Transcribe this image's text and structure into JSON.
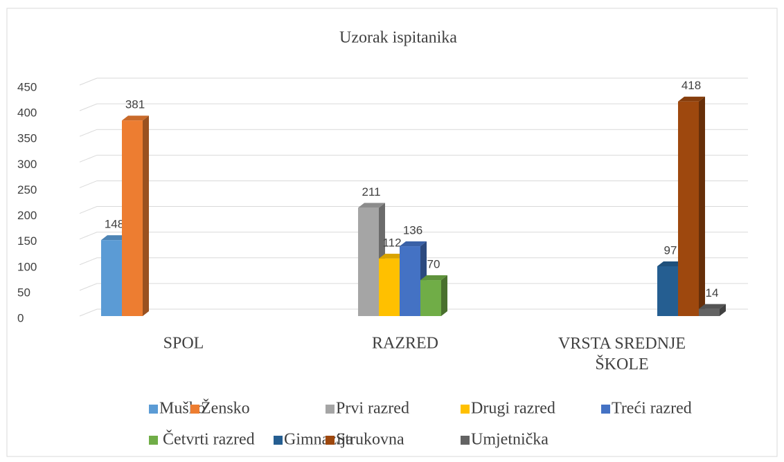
{
  "chart_data": {
    "type": "bar3d",
    "title": "Uzorak ispitanika",
    "categories": [
      "SPOL",
      "RAZRED",
      "VRSTA SREDNJE ŠKOLE"
    ],
    "series": [
      {
        "name": "Muško",
        "color": "#5b9bd5",
        "values": [
          148,
          null,
          null
        ]
      },
      {
        "name": "Žensko",
        "color": "#ed7d31",
        "values": [
          381,
          null,
          null
        ]
      },
      {
        "name": "Prvi razred",
        "color": "#a5a5a5",
        "values": [
          null,
          211,
          null
        ]
      },
      {
        "name": "Drugi razred",
        "color": "#ffc000",
        "values": [
          null,
          112,
          null
        ]
      },
      {
        "name": "Treći razred",
        "color": "#4472c4",
        "values": [
          null,
          136,
          null
        ]
      },
      {
        "name": "Četvrti razred",
        "color": "#70ad47",
        "values": [
          null,
          70,
          null
        ]
      },
      {
        "name": "Gimnazija",
        "color": "#255e91",
        "values": [
          null,
          null,
          97
        ]
      },
      {
        "name": "Strukovna",
        "color": "#9e480e",
        "values": [
          null,
          null,
          418
        ]
      },
      {
        "name": "Umjetnička",
        "color": "#636363",
        "values": [
          null,
          null,
          14
        ]
      }
    ],
    "ylim": [
      0,
      450
    ],
    "yticks": [
      0,
      50,
      100,
      150,
      200,
      250,
      300,
      350,
      400,
      450
    ],
    "grid": true,
    "legend": "bottom"
  }
}
